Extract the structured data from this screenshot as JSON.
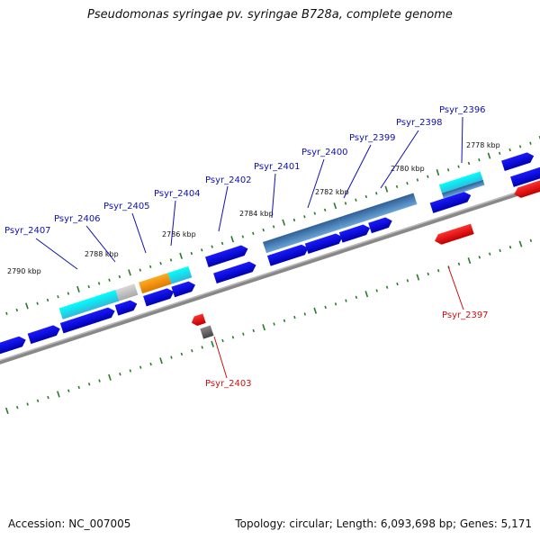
{
  "title": "Pseudomonas syringae pv. syringae B728a, complete genome",
  "accession": "Accession: NC_007005",
  "summary": "Topology: circular; Length: 6,093,698 bp; Genes: 5,171",
  "colors": {
    "cds_forward": "#0000dd",
    "cds_reverse": "#ff1111",
    "backbone": "#888888",
    "tick": "#2a7a2a",
    "label_forward": "#1010b0",
    "label_reverse": "#cc1111",
    "cyan": "#22ddee",
    "orange": "#ff9910",
    "steelblue": "#4a88c0",
    "gray": "#bbbbbb",
    "darkgray": "#666666"
  },
  "scale_labels": [
    "2790 kbp",
    "2788 kbp",
    "2786 kbp",
    "2784 kbp",
    "2782 kbp",
    "2780 kbp",
    "2778 kbp"
  ],
  "genes": [
    {
      "name": "Psyr_2407",
      "strand": "+"
    },
    {
      "name": "Psyr_2406",
      "strand": "+"
    },
    {
      "name": "Psyr_2405",
      "strand": "+"
    },
    {
      "name": "Psyr_2404",
      "strand": "+"
    },
    {
      "name": "Psyr_2403",
      "strand": "-"
    },
    {
      "name": "Psyr_2402",
      "strand": "+"
    },
    {
      "name": "Psyr_2401",
      "strand": "+"
    },
    {
      "name": "Psyr_2400",
      "strand": "+"
    },
    {
      "name": "Psyr_2399",
      "strand": "+"
    },
    {
      "name": "Psyr_2398",
      "strand": "+"
    },
    {
      "name": "Psyr_2397",
      "strand": "-"
    },
    {
      "name": "Psyr_2396",
      "strand": "+"
    }
  ]
}
